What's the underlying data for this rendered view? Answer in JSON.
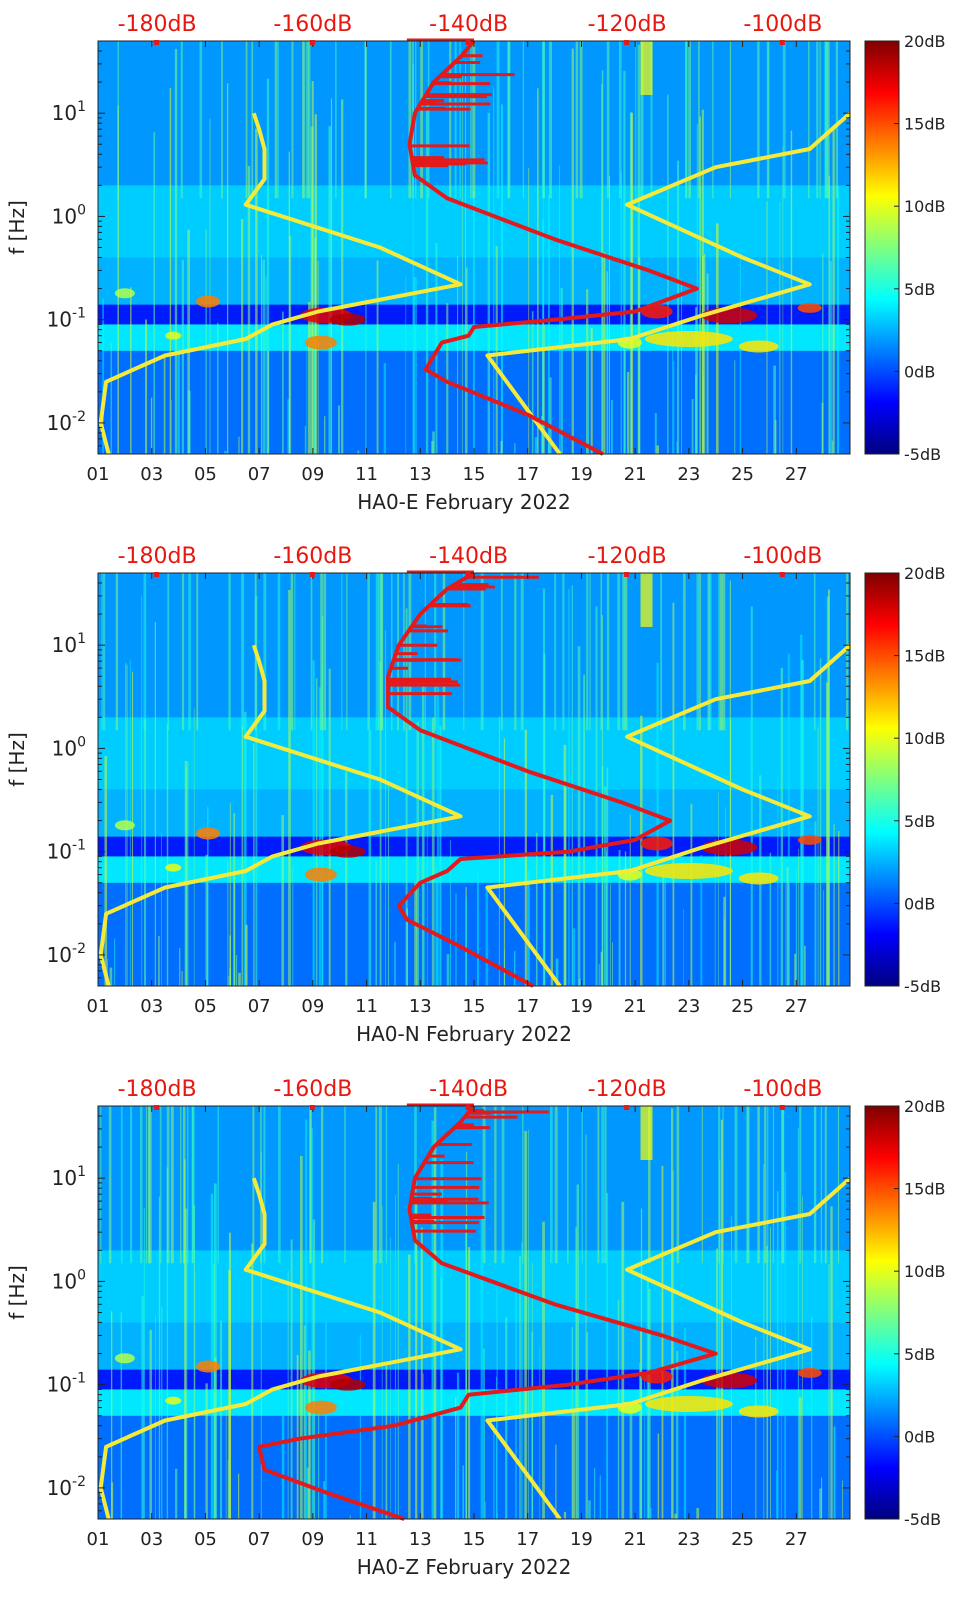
{
  "colors": {
    "background": "#ffffff",
    "red_line": "#e31a1c",
    "yellow_line": "#f5ea3a",
    "top_axis_text": "#e8170f",
    "axis_text": "#222222",
    "colormap": [
      "#00007f",
      "#0000ff",
      "#007fff",
      "#00ffff",
      "#7fff7f",
      "#ffff00",
      "#ff7f00",
      "#ff0000",
      "#7f0000"
    ]
  },
  "chart_data": [
    {
      "type": "heatmap",
      "title": "HA0-E February 2022",
      "xlabel": "HA0-E February 2022",
      "ylabel": "f [Hz]",
      "x_ticks": [
        "01",
        "03",
        "05",
        "07",
        "09",
        "11",
        "13",
        "15",
        "17",
        "19",
        "21",
        "23",
        "25",
        "27"
      ],
      "x_range_days": [
        1,
        29
      ],
      "y_scale": "log",
      "y_range_hz": [
        0.005,
        50
      ],
      "y_ticks": [
        {
          "value": 0.01,
          "base": "10",
          "exp": "-2"
        },
        {
          "value": 0.1,
          "base": "10",
          "exp": "-1"
        },
        {
          "value": 1,
          "base": "10",
          "exp": "0"
        },
        {
          "value": 10,
          "base": "10",
          "exp": "1"
        }
      ],
      "top_axis_ticks": [
        {
          "label": "-180dB",
          "day": 3.2
        },
        {
          "label": "-160dB",
          "day": 9.0
        },
        {
          "label": "-140dB",
          "day": 14.8
        },
        {
          "label": "-120dB",
          "day": 20.7
        },
        {
          "label": "-100dB",
          "day": 26.5
        }
      ],
      "colorbar": {
        "range": [
          -5,
          20
        ],
        "ticks": [
          "-5dB",
          "0dB",
          "5dB",
          "10dB",
          "15dB",
          "20dB"
        ]
      },
      "yellow_left": [
        [
          1.4,
          0.005
        ],
        [
          1.1,
          0.01
        ],
        [
          1.3,
          0.025
        ],
        [
          3.5,
          0.045
        ],
        [
          6.5,
          0.065
        ],
        [
          7.5,
          0.09
        ],
        [
          9.2,
          0.12
        ],
        [
          14.5,
          0.22
        ],
        [
          11.5,
          0.5
        ],
        [
          6.5,
          1.3
        ],
        [
          7.2,
          2.3
        ],
        [
          7.2,
          4.5
        ],
        [
          7.0,
          7.0
        ],
        [
          6.8,
          10
        ]
      ],
      "yellow_right": [
        [
          18.2,
          0.005
        ],
        [
          15.5,
          0.045
        ],
        [
          20.8,
          0.065
        ],
        [
          23.5,
          0.11
        ],
        [
          27.5,
          0.22
        ],
        [
          25.0,
          0.4
        ],
        [
          20.7,
          1.3
        ],
        [
          24.0,
          3.0
        ],
        [
          27.5,
          4.5
        ],
        [
          29.0,
          10
        ]
      ],
      "red_curve": [
        [
          19.8,
          0.005
        ],
        [
          17.0,
          0.012
        ],
        [
          14.0,
          0.025
        ],
        [
          13.2,
          0.033
        ],
        [
          13.8,
          0.06
        ],
        [
          14.8,
          0.07
        ],
        [
          15.0,
          0.085
        ],
        [
          18.0,
          0.1
        ],
        [
          21.0,
          0.12
        ],
        [
          23.3,
          0.2
        ],
        [
          21.5,
          0.3
        ],
        [
          18.0,
          0.6
        ],
        [
          14.0,
          1.5
        ],
        [
          12.8,
          2.5
        ],
        [
          12.6,
          5
        ],
        [
          12.8,
          10
        ],
        [
          13.5,
          20
        ],
        [
          14.5,
          35
        ],
        [
          15.0,
          50
        ]
      ]
    },
    {
      "type": "heatmap",
      "title": "HA0-N February 2022",
      "xlabel": "HA0-N February 2022",
      "ylabel": "f [Hz]",
      "x_ticks": [
        "01",
        "03",
        "05",
        "07",
        "09",
        "11",
        "13",
        "15",
        "17",
        "19",
        "21",
        "23",
        "25",
        "27"
      ],
      "x_range_days": [
        1,
        29
      ],
      "y_scale": "log",
      "y_range_hz": [
        0.005,
        50
      ],
      "y_ticks": [
        {
          "value": 0.01,
          "base": "10",
          "exp": "-2"
        },
        {
          "value": 0.1,
          "base": "10",
          "exp": "-1"
        },
        {
          "value": 1,
          "base": "10",
          "exp": "0"
        },
        {
          "value": 10,
          "base": "10",
          "exp": "1"
        }
      ],
      "top_axis_ticks": [
        {
          "label": "-180dB",
          "day": 3.2
        },
        {
          "label": "-160dB",
          "day": 9.0
        },
        {
          "label": "-140dB",
          "day": 14.8
        },
        {
          "label": "-120dB",
          "day": 20.7
        },
        {
          "label": "-100dB",
          "day": 26.5
        }
      ],
      "colorbar": {
        "range": [
          -5,
          20
        ],
        "ticks": [
          "-5dB",
          "0dB",
          "5dB",
          "10dB",
          "15dB",
          "20dB"
        ]
      },
      "yellow_left": [
        [
          1.4,
          0.005
        ],
        [
          1.1,
          0.01
        ],
        [
          1.3,
          0.025
        ],
        [
          3.5,
          0.045
        ],
        [
          6.5,
          0.065
        ],
        [
          7.5,
          0.09
        ],
        [
          9.2,
          0.12
        ],
        [
          14.5,
          0.22
        ],
        [
          11.5,
          0.5
        ],
        [
          6.5,
          1.3
        ],
        [
          7.2,
          2.3
        ],
        [
          7.2,
          4.5
        ],
        [
          7.0,
          7.0
        ],
        [
          6.8,
          10
        ]
      ],
      "yellow_right": [
        [
          18.2,
          0.005
        ],
        [
          15.5,
          0.045
        ],
        [
          20.8,
          0.065
        ],
        [
          23.5,
          0.11
        ],
        [
          27.5,
          0.22
        ],
        [
          25.0,
          0.4
        ],
        [
          20.7,
          1.3
        ],
        [
          24.0,
          3.0
        ],
        [
          27.5,
          4.5
        ],
        [
          29.0,
          10
        ]
      ],
      "red_curve": [
        [
          17.2,
          0.005
        ],
        [
          14.5,
          0.012
        ],
        [
          12.5,
          0.022
        ],
        [
          12.2,
          0.03
        ],
        [
          13.0,
          0.05
        ],
        [
          14.0,
          0.065
        ],
        [
          14.5,
          0.085
        ],
        [
          18.5,
          0.1
        ],
        [
          21.0,
          0.13
        ],
        [
          22.3,
          0.2
        ],
        [
          20.5,
          0.3
        ],
        [
          17.0,
          0.6
        ],
        [
          13.0,
          1.5
        ],
        [
          11.8,
          2.5
        ],
        [
          11.8,
          5
        ],
        [
          12.2,
          10
        ],
        [
          13.0,
          20
        ],
        [
          14.0,
          35
        ],
        [
          15.0,
          50
        ]
      ]
    },
    {
      "type": "heatmap",
      "title": "HA0-Z February 2022",
      "xlabel": "HA0-Z February 2022",
      "ylabel": "f [Hz]",
      "x_ticks": [
        "01",
        "03",
        "05",
        "07",
        "09",
        "11",
        "13",
        "15",
        "17",
        "19",
        "21",
        "23",
        "25",
        "27"
      ],
      "x_range_days": [
        1,
        29
      ],
      "y_scale": "log",
      "y_range_hz": [
        0.005,
        50
      ],
      "y_ticks": [
        {
          "value": 0.01,
          "base": "10",
          "exp": "-2"
        },
        {
          "value": 0.1,
          "base": "10",
          "exp": "-1"
        },
        {
          "value": 1,
          "base": "10",
          "exp": "0"
        },
        {
          "value": 10,
          "base": "10",
          "exp": "1"
        }
      ],
      "top_axis_ticks": [
        {
          "label": "-180dB",
          "day": 3.2
        },
        {
          "label": "-160dB",
          "day": 9.0
        },
        {
          "label": "-140dB",
          "day": 14.8
        },
        {
          "label": "-120dB",
          "day": 20.7
        },
        {
          "label": "-100dB",
          "day": 26.5
        }
      ],
      "colorbar": {
        "range": [
          -5,
          20
        ],
        "ticks": [
          "-5dB",
          "0dB",
          "5dB",
          "10dB",
          "15dB",
          "20dB"
        ]
      },
      "yellow_left": [
        [
          1.4,
          0.005
        ],
        [
          1.1,
          0.01
        ],
        [
          1.3,
          0.025
        ],
        [
          3.5,
          0.045
        ],
        [
          6.5,
          0.065
        ],
        [
          7.5,
          0.09
        ],
        [
          9.2,
          0.12
        ],
        [
          14.5,
          0.22
        ],
        [
          11.5,
          0.5
        ],
        [
          6.5,
          1.3
        ],
        [
          7.2,
          2.3
        ],
        [
          7.2,
          4.5
        ],
        [
          7.0,
          7.0
        ],
        [
          6.8,
          10
        ]
      ],
      "yellow_right": [
        [
          18.2,
          0.005
        ],
        [
          15.5,
          0.045
        ],
        [
          20.8,
          0.065
        ],
        [
          23.5,
          0.11
        ],
        [
          27.5,
          0.22
        ],
        [
          25.0,
          0.4
        ],
        [
          20.7,
          1.3
        ],
        [
          24.0,
          3.0
        ],
        [
          27.5,
          4.5
        ],
        [
          29.0,
          10
        ]
      ],
      "red_curve": [
        [
          12.4,
          0.005
        ],
        [
          9.5,
          0.009
        ],
        [
          7.2,
          0.015
        ],
        [
          7.0,
          0.025
        ],
        [
          8.5,
          0.03
        ],
        [
          12.0,
          0.04
        ],
        [
          14.5,
          0.06
        ],
        [
          14.8,
          0.08
        ],
        [
          18.5,
          0.1
        ],
        [
          21.5,
          0.13
        ],
        [
          24.0,
          0.2
        ],
        [
          22.0,
          0.3
        ],
        [
          18.0,
          0.6
        ],
        [
          13.8,
          1.5
        ],
        [
          12.8,
          2.5
        ],
        [
          12.6,
          5
        ],
        [
          12.8,
          10
        ],
        [
          13.5,
          20
        ],
        [
          14.5,
          35
        ],
        [
          15.0,
          50
        ]
      ]
    }
  ]
}
